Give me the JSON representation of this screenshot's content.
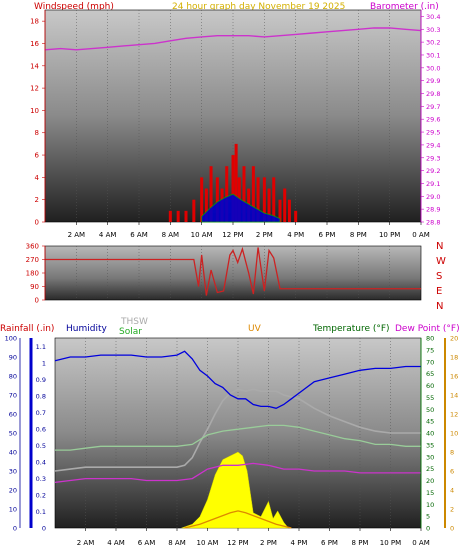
{
  "header": {
    "windspeed_title": "Windspeed (mph)",
    "center_title": "24 hour graph day   November 19 2025",
    "barometer_title": "Barometer (.in)"
  },
  "x_axis": {
    "labels": [
      "2 AM",
      "4 AM",
      "6 AM",
      "8 AM",
      "10 AM",
      "12 PM",
      "2 PM",
      "4 PM",
      "6 PM",
      "8 PM",
      "10 PM",
      "0 AM"
    ]
  },
  "dir_labels": [
    "N",
    "W",
    "S",
    "E",
    "N"
  ],
  "bottom_header": {
    "rainfall_title": "Rainfall (.in)",
    "humidity_title": "Humidity",
    "thsw_title": "THSW",
    "solar_title": "Solar",
    "uv_title": "UV",
    "temperature_title": "Temperature (°F)",
    "dewpoint_title": "Dew Point (°F)"
  },
  "colors": {
    "wind": "#e00000",
    "gust_fill": "#0000cc",
    "gust2": "#00aa00",
    "barometer": "#cc33cc",
    "direction": "#cc2222",
    "humidity": "#0000dd",
    "thsw": "#aaaaaa",
    "temperature": "#99cc99",
    "dewpoint": "#cc33cc",
    "solar": "#ffff00",
    "uv": "#dd8800",
    "rain_axis": "#0000cc",
    "temp_axis": "#008000",
    "dew_axis": "#cc8800"
  },
  "chart_data": [
    {
      "type": "line",
      "name": "wind-barometer",
      "x_range": [
        0,
        24
      ],
      "left_axis": {
        "label": "Windspeed (mph)",
        "range": [
          0,
          19
        ],
        "ticks": [
          0,
          2,
          4,
          6,
          8,
          10,
          12,
          14,
          16,
          18
        ]
      },
      "right_axis": {
        "label": "Barometer (.in)",
        "range": [
          28.8,
          30.45
        ],
        "ticks": [
          28.8,
          28.9,
          29.0,
          29.1,
          29.2,
          29.3,
          29.4,
          29.5,
          29.6,
          29.7,
          29.8,
          29.9,
          30.0,
          30.1,
          30.2,
          30.3,
          30.4
        ]
      },
      "series": [
        {
          "name": "Barometer (.in)",
          "axis": "right",
          "x": [
            0,
            1,
            2,
            3,
            4,
            5,
            6,
            7,
            8,
            9,
            10,
            11,
            12,
            13,
            14,
            15,
            16,
            17,
            18,
            19,
            20,
            21,
            22,
            23,
            24
          ],
          "values": [
            30.14,
            30.15,
            30.14,
            30.15,
            30.16,
            30.17,
            30.18,
            30.19,
            30.21,
            30.23,
            30.24,
            30.25,
            30.25,
            30.25,
            30.24,
            30.25,
            30.26,
            30.27,
            30.28,
            30.29,
            30.3,
            30.31,
            30.31,
            30.3,
            30.29
          ]
        },
        {
          "name": "Windspeed (mph)",
          "axis": "left",
          "x": [
            8.0,
            8.5,
            9.0,
            9.5,
            10.0,
            10.3,
            10.6,
            11.0,
            11.3,
            11.6,
            12.0,
            12.2,
            12.4,
            12.7,
            13.0,
            13.3,
            13.6,
            14.0,
            14.3,
            14.6,
            15.0,
            15.3,
            15.6,
            16.0
          ],
          "values": [
            1,
            1,
            1,
            2,
            4,
            3,
            5,
            4,
            3,
            5,
            6,
            7,
            4,
            5,
            3,
            5,
            4,
            4,
            3,
            4,
            2,
            3,
            2,
            1
          ]
        },
        {
          "name": "Gust",
          "axis": "left",
          "x": [
            10.0,
            10.5,
            11.0,
            11.5,
            12.0,
            12.5,
            13.0,
            13.5,
            14.0,
            14.5,
            15.0
          ],
          "values": [
            0.5,
            1.2,
            1.8,
            2.2,
            2.5,
            2.0,
            1.6,
            1.2,
            0.8,
            0.6,
            0.3
          ]
        }
      ]
    },
    {
      "type": "scatter",
      "name": "wind-direction",
      "x_range": [
        0,
        24
      ],
      "y_range": [
        0,
        360
      ],
      "ticks": [
        0,
        90,
        180,
        270,
        360
      ],
      "series": [
        {
          "name": "Direction",
          "x": [
            0,
            2,
            4,
            6,
            8,
            9.5,
            9.8,
            10.0,
            10.3,
            10.6,
            11.0,
            11.4,
            11.8,
            12.0,
            12.3,
            12.6,
            13.0,
            13.3,
            13.6,
            14.0,
            14.3,
            14.6,
            15.0,
            16,
            18,
            20,
            22,
            24
          ],
          "values": [
            270,
            270,
            270,
            270,
            270,
            270,
            90,
            300,
            30,
            200,
            50,
            60,
            300,
            330,
            250,
            340,
            180,
            40,
            350,
            60,
            330,
            280,
            75,
            75,
            75,
            75,
            75,
            75
          ]
        }
      ]
    },
    {
      "type": "line",
      "name": "weather",
      "x_range": [
        0,
        24
      ],
      "left_axis": {
        "label": "Humidity",
        "range": [
          0,
          100
        ],
        "ticks": [
          0,
          10,
          20,
          30,
          40,
          50,
          60,
          70,
          80,
          90,
          100
        ]
      },
      "left_axis_2": {
        "label": "Rainfall (.in)",
        "range": [
          0,
          1.15
        ],
        "ticks": [
          0,
          0.1,
          0.2,
          0.3,
          0.4,
          0.5,
          0.6,
          0.7,
          0.8,
          0.9,
          1,
          1.1
        ]
      },
      "right_axis": {
        "label": "Temperature (°F)",
        "range": [
          0,
          80
        ],
        "ticks": [
          0,
          5,
          10,
          15,
          20,
          25,
          30,
          35,
          40,
          45,
          50,
          55,
          60,
          65,
          70,
          75,
          80
        ]
      },
      "right_axis_2": {
        "label": "Dew Point (°F)",
        "range": [
          0,
          20
        ],
        "ticks": [
          0,
          2,
          4,
          6,
          8,
          10,
          12,
          14,
          16,
          18,
          20
        ]
      },
      "series": [
        {
          "name": "Humidity",
          "axis": "left",
          "x": [
            0,
            1,
            2,
            3,
            4,
            5,
            6,
            7,
            8,
            8.5,
            9,
            9.5,
            10,
            10.5,
            11,
            11.5,
            12,
            12.5,
            13,
            13.5,
            14,
            14.5,
            15,
            15.5,
            16,
            17,
            18,
            19,
            20,
            21,
            22,
            23,
            24
          ],
          "values": [
            88,
            90,
            90,
            91,
            91,
            91,
            90,
            90,
            91,
            93,
            89,
            83,
            80,
            76,
            74,
            70,
            68,
            68,
            65,
            64,
            64,
            63,
            65,
            68,
            71,
            77,
            79,
            81,
            83,
            84,
            84,
            85,
            85
          ]
        },
        {
          "name": "THSW",
          "axis": "left",
          "x": [
            0,
            1,
            2,
            3,
            4,
            5,
            6,
            7,
            8,
            8.5,
            9,
            9.5,
            10,
            10.5,
            11,
            11.5,
            12,
            12.5,
            13,
            13.5,
            14,
            14.5,
            15,
            16,
            17,
            18,
            19,
            20,
            21,
            22,
            23,
            24
          ],
          "values": [
            30,
            31,
            32,
            32,
            32,
            32,
            32,
            32,
            32,
            33,
            37,
            45,
            52,
            60,
            67,
            71,
            73,
            72,
            73,
            72,
            72,
            72,
            70,
            68,
            63,
            59,
            56,
            53,
            51,
            50,
            50,
            50
          ]
        },
        {
          "name": "Temperature (°F)",
          "axis": "left",
          "x": [
            0,
            1,
            2,
            3,
            4,
            5,
            6,
            7,
            8,
            9,
            10,
            11,
            12,
            13,
            14,
            15,
            16,
            17,
            18,
            19,
            20,
            21,
            22,
            23,
            24
          ],
          "values": [
            41,
            41,
            42,
            43,
            43,
            43,
            43,
            43,
            43,
            44,
            49,
            51,
            52,
            53,
            54,
            54,
            53,
            51,
            49,
            47,
            46,
            44,
            44,
            43,
            43
          ]
        },
        {
          "name": "Dew Point (°F)",
          "axis": "left",
          "x": [
            0,
            1,
            2,
            3,
            4,
            5,
            6,
            7,
            8,
            9,
            10,
            11,
            12,
            13,
            14,
            15,
            16,
            17,
            18,
            19,
            20,
            21,
            22,
            23,
            24
          ],
          "values": [
            24,
            25,
            26,
            26,
            26,
            26,
            25,
            25,
            25,
            26,
            31,
            33,
            33,
            34,
            33,
            31,
            31,
            30,
            30,
            30,
            29,
            29,
            29,
            29,
            29
          ]
        },
        {
          "name": "Solar",
          "axis": "left",
          "x": [
            8.3,
            9,
            9.5,
            10,
            10.5,
            11,
            11.5,
            12,
            12.3,
            12.6,
            13,
            13.5,
            14,
            14.3,
            14.6,
            15,
            15.3
          ],
          "values": [
            0,
            2,
            6,
            15,
            28,
            36,
            38,
            40,
            38,
            30,
            8,
            6,
            14,
            5,
            9,
            3,
            0
          ]
        },
        {
          "name": "UV",
          "axis": "left",
          "x": [
            8.5,
            9.5,
            10.5,
            11.5,
            12,
            12.5,
            13.5,
            14.5,
            15.5
          ],
          "values": [
            0,
            2,
            5,
            8,
            9,
            8,
            5,
            2,
            0
          ]
        }
      ]
    }
  ]
}
